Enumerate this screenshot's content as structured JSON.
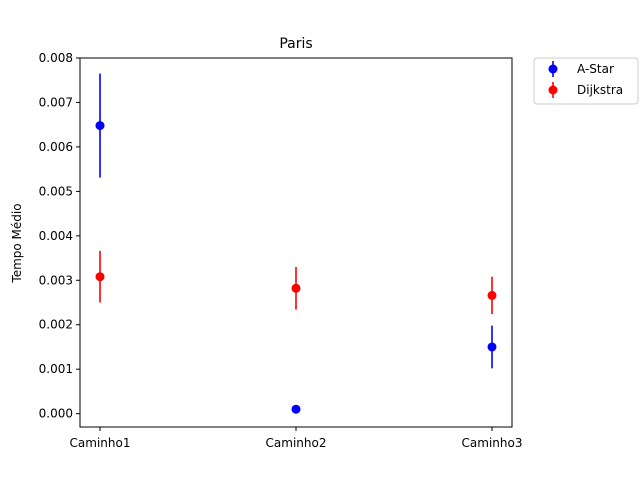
{
  "chart_data": {
    "type": "scatter",
    "title": "Paris",
    "xlabel": "",
    "ylabel": "Tempo Médio",
    "categories": [
      "Caminho1",
      "Caminho2",
      "Caminho3"
    ],
    "ylim": [
      -0.0003,
      0.008
    ],
    "yticks": [
      0.0,
      0.001,
      0.002,
      0.003,
      0.004,
      0.005,
      0.006,
      0.007,
      0.008
    ],
    "ytick_labels": [
      "0.000",
      "0.001",
      "0.002",
      "0.003",
      "0.004",
      "0.005",
      "0.006",
      "0.007",
      "0.008"
    ],
    "grid": false,
    "legend_position": "outside top-right",
    "series": [
      {
        "name": "A-Star",
        "color": "#0000ff",
        "values": [
          0.00648,
          0.0001,
          0.0015
        ],
        "errors": [
          0.00117,
          0.0,
          0.00048
        ]
      },
      {
        "name": "Dijkstra",
        "color": "#ff0000",
        "values": [
          0.00308,
          0.00282,
          0.00266
        ],
        "errors": [
          0.00058,
          0.00048,
          0.00042
        ]
      }
    ]
  }
}
